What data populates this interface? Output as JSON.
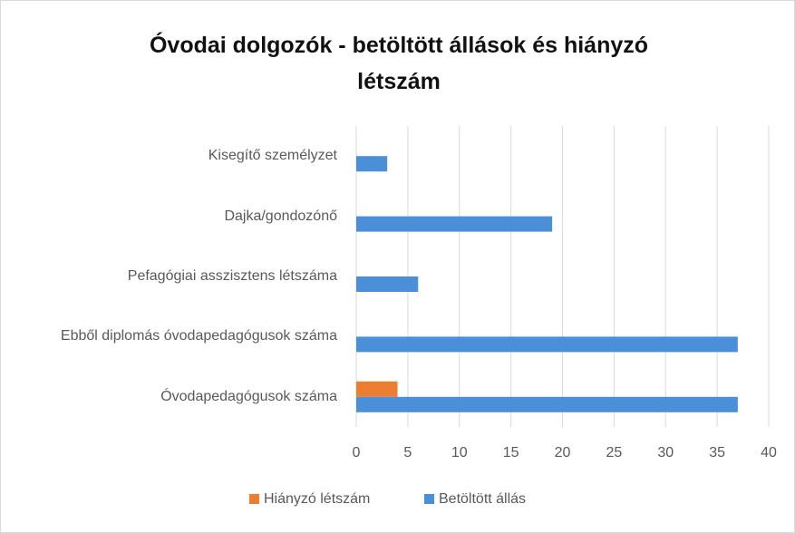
{
  "chart_data": {
    "type": "hbar",
    "title": "Óvodai dolgozók - betöltött állások és hiányzó létszám",
    "categories": [
      "Kisegítő személyzet",
      "Dajka/gondozónő",
      "Pefagógiai asszisztens létszáma",
      "Ebből diplomás óvodapedagógusok száma",
      "Óvodapedagógusok száma"
    ],
    "series": [
      {
        "name": "Hiányzó létszám",
        "color": "#ed7d31",
        "values": [
          0,
          0,
          0,
          0,
          4
        ]
      },
      {
        "name": "Betöltött állás",
        "color": "#4a8fd8",
        "values": [
          3,
          19,
          6,
          37,
          37
        ]
      }
    ],
    "xlim": [
      0,
      40
    ],
    "xticks": [
      0,
      5,
      10,
      15,
      20,
      25,
      30,
      35,
      40
    ],
    "grid": true,
    "legend": "bottom"
  }
}
